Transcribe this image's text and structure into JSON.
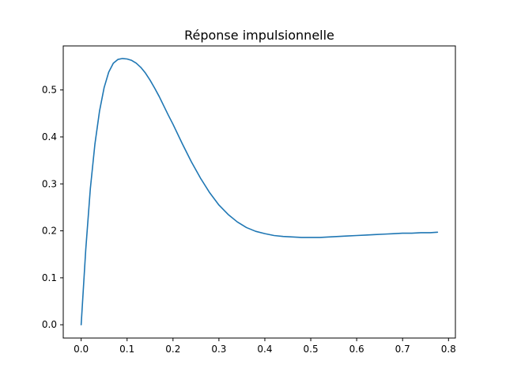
{
  "chart_data": {
    "type": "line",
    "title": "Réponse impulsionnelle",
    "xlabel": "",
    "ylabel": "",
    "xlim": [
      -0.039,
      0.815
    ],
    "ylim": [
      -0.0283,
      0.5938
    ],
    "x_ticks": [
      0.0,
      0.1,
      0.2,
      0.3,
      0.4,
      0.5,
      0.6,
      0.7,
      0.8
    ],
    "x_tick_labels": [
      "0.0",
      "0.1",
      "0.2",
      "0.3",
      "0.4",
      "0.5",
      "0.6",
      "0.7",
      "0.8"
    ],
    "y_ticks": [
      0.0,
      0.1,
      0.2,
      0.3,
      0.4,
      0.5
    ],
    "y_tick_labels": [
      "0.0",
      "0.1",
      "0.2",
      "0.3",
      "0.4",
      "0.5"
    ],
    "grid": false,
    "legend": "none",
    "series": [
      {
        "color": "#1f77b4",
        "x": [
          0.0,
          0.01,
          0.02,
          0.03,
          0.04,
          0.05,
          0.06,
          0.07,
          0.08,
          0.09,
          0.1,
          0.11,
          0.12,
          0.13,
          0.14,
          0.15,
          0.16,
          0.17,
          0.18,
          0.19,
          0.2,
          0.22,
          0.24,
          0.26,
          0.28,
          0.3,
          0.32,
          0.34,
          0.36,
          0.38,
          0.4,
          0.42,
          0.44,
          0.46,
          0.48,
          0.5,
          0.52,
          0.54,
          0.56,
          0.58,
          0.6,
          0.62,
          0.64,
          0.66,
          0.68,
          0.7,
          0.72,
          0.74,
          0.76,
          0.776
        ],
        "y": [
          0.0,
          0.16,
          0.29,
          0.385,
          0.455,
          0.505,
          0.538,
          0.557,
          0.565,
          0.567,
          0.566,
          0.563,
          0.557,
          0.548,
          0.536,
          0.521,
          0.504,
          0.486,
          0.466,
          0.446,
          0.427,
          0.386,
          0.347,
          0.312,
          0.281,
          0.255,
          0.235,
          0.219,
          0.207,
          0.199,
          0.194,
          0.19,
          0.188,
          0.187,
          0.186,
          0.186,
          0.186,
          0.187,
          0.188,
          0.189,
          0.19,
          0.191,
          0.192,
          0.193,
          0.194,
          0.195,
          0.195,
          0.196,
          0.196,
          0.197
        ]
      }
    ]
  }
}
